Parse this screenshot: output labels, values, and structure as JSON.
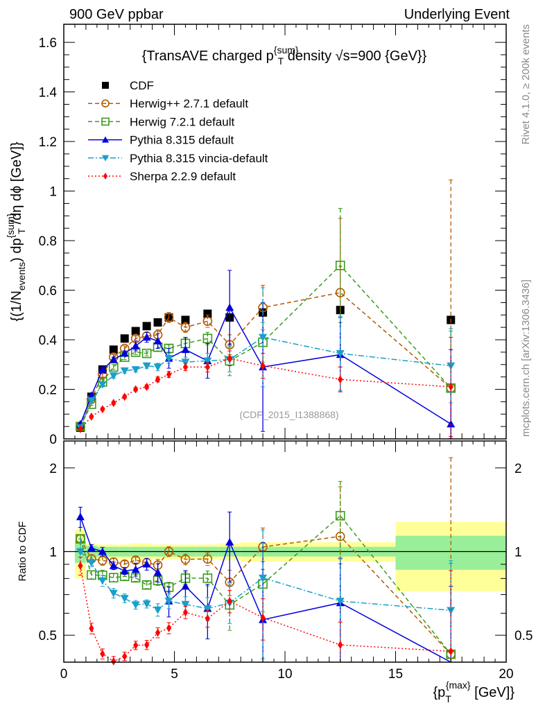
{
  "header": {
    "left": "900 GeV ppbar",
    "right": "Underlying Event"
  },
  "side_texts": {
    "rivet": "Rivet 4.1.0, ≥ 200k events",
    "mcplots": "mcplots.cern.ch [arXiv:1306.3436]"
  },
  "watermark": "(CDF_2015_I1388868)",
  "chart_data": [
    {
      "type": "line",
      "title": "{TransAVE charged p^{sum}_T density √s=900 {GeV}}",
      "title_parts": {
        "a": "{TransAVE charged p",
        "sup": "{sum}",
        "sub": "T",
        "b": " density √s=900 {GeV}}"
      },
      "ylabel_parts": {
        "a": "{(1/N",
        "sub1": "events",
        "b": ") dp",
        "sup": "{sum}",
        "sub2": "T",
        "c": " /dη dϕ [GeV]}"
      },
      "xlabel_parts": {
        "a": "{p",
        "sub": "T",
        "sup": "{max}",
        "b": " [GeV]}"
      },
      "xlim": [
        0,
        20
      ],
      "ylim": [
        0,
        1.673
      ],
      "xticks": [
        "0",
        "5",
        "10",
        "15",
        "20"
      ],
      "yticks": [
        "0",
        "0.2",
        "0.4",
        "0.6",
        "0.8",
        "1",
        "1.2",
        "1.4",
        "1.6"
      ],
      "x": [
        0.75,
        1.25,
        1.75,
        2.25,
        2.75,
        3.25,
        3.75,
        4.25,
        4.75,
        5.5,
        6.5,
        7.5,
        9,
        12.5,
        17.5
      ],
      "bin_edges": [
        0.5,
        1,
        1.5,
        2,
        2.5,
        3,
        3.5,
        4,
        4.5,
        5,
        6,
        7,
        8,
        10,
        15,
        20
      ],
      "legend_position": "top-left",
      "series": [
        {
          "name": "CDF",
          "color": "#000000",
          "marker": "square-filled",
          "line": "none",
          "values": [
            0.045,
            0.17,
            0.28,
            0.36,
            0.405,
            0.435,
            0.455,
            0.47,
            0.49,
            0.48,
            0.505,
            0.49,
            0.51,
            0.52,
            0.48
          ]
        },
        {
          "name": "Herwig++ 2.7.1 default",
          "color": "#b35900",
          "marker": "circle-open",
          "line": "dashed",
          "values": [
            0.05,
            0.16,
            0.26,
            0.33,
            0.365,
            0.405,
            0.415,
            0.42,
            0.49,
            0.45,
            0.475,
            0.38,
            0.53,
            0.59,
            0.205
          ],
          "errors": [
            0.005,
            0.005,
            0.01,
            0.01,
            0.01,
            0.01,
            0.015,
            0.02,
            0.02,
            0.02,
            0.025,
            0.04,
            0.09,
            0.3,
            0.84
          ]
        },
        {
          "name": "Herwig 7.2.1 default",
          "color": "#3a9a1a",
          "marker": "square-open",
          "line": "dashed",
          "values": [
            0.05,
            0.14,
            0.23,
            0.29,
            0.33,
            0.35,
            0.345,
            0.37,
            0.365,
            0.385,
            0.405,
            0.315,
            0.39,
            0.7,
            0.205
          ],
          "errors": [
            0.005,
            0.005,
            0.01,
            0.01,
            0.01,
            0.01,
            0.01,
            0.015,
            0.015,
            0.02,
            0.025,
            0.06,
            0.08,
            0.23,
            0.23
          ]
        },
        {
          "name": "Pythia 8.315 default",
          "color": "#0000dd",
          "marker": "triangle-up",
          "line": "solid",
          "values": [
            0.06,
            0.175,
            0.28,
            0.32,
            0.345,
            0.375,
            0.41,
            0.395,
            0.325,
            0.36,
            0.315,
            0.53,
            0.29,
            0.34,
            0.06
          ],
          "errors": [
            0.005,
            0.005,
            0.01,
            0.01,
            0.01,
            0.02,
            0.02,
            0.03,
            0.04,
            0.05,
            0.07,
            0.15,
            0.26,
            0.15,
            0.3
          ]
        },
        {
          "name": "Pythia 8.315 vincia-default",
          "color": "#1a9fc8",
          "marker": "triangle-down",
          "line": "dashdot",
          "values": [
            0.045,
            0.155,
            0.22,
            0.255,
            0.275,
            0.28,
            0.295,
            0.29,
            0.325,
            0.31,
            0.315,
            0.32,
            0.41,
            0.345,
            0.295
          ],
          "errors": [
            0.005,
            0.005,
            0.01,
            0.01,
            0.01,
            0.01,
            0.01,
            0.015,
            0.02,
            0.02,
            0.03,
            0.05,
            0.2,
            0.15,
            0.15
          ]
        },
        {
          "name": "Sherpa 2.2.9 default",
          "color": "#ff0000",
          "marker": "diamond",
          "line": "dotted",
          "values": [
            0.04,
            0.09,
            0.12,
            0.145,
            0.17,
            0.2,
            0.21,
            0.24,
            0.26,
            0.29,
            0.29,
            0.325,
            0.295,
            0.24,
            0.21
          ],
          "errors": [
            0.003,
            0.004,
            0.005,
            0.006,
            0.006,
            0.007,
            0.008,
            0.01,
            0.012,
            0.015,
            0.02,
            0.03,
            0.05,
            0.05,
            0.2
          ]
        }
      ]
    },
    {
      "type": "line",
      "ylabel": "Ratio to CDF",
      "yscale": "log",
      "ylim": [
        0.4,
        2.5
      ],
      "yticks": [
        "0.5",
        "1",
        "2"
      ],
      "reference": "CDF",
      "band_stat_rel": [
        0.09,
        0.05,
        0.04,
        0.04,
        0.04,
        0.04,
        0.04,
        0.04,
        0.04,
        0.04,
        0.04,
        0.04,
        0.04,
        0.04,
        0.14
      ],
      "band_total_rel": [
        0.2,
        0.07,
        0.06,
        0.06,
        0.06,
        0.07,
        0.07,
        0.06,
        0.06,
        0.06,
        0.06,
        0.07,
        0.08,
        0.08,
        0.28
      ]
    }
  ]
}
